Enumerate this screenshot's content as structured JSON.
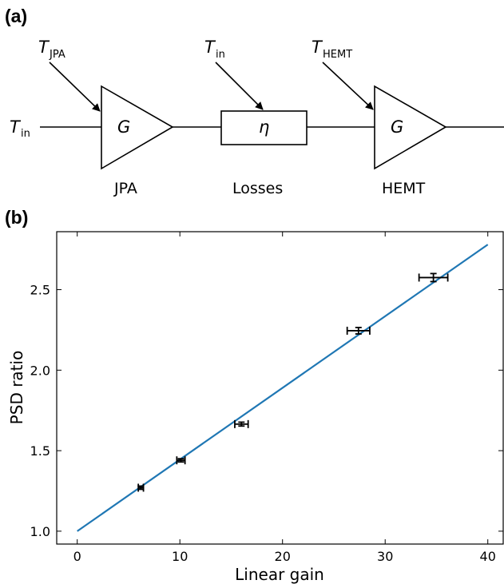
{
  "diagram": {
    "panel_label": "(a)",
    "input": {
      "symbol": "T",
      "subscript": "in"
    },
    "jpa": {
      "temp_symbol": "T",
      "temp_subscript": "JPA",
      "gain_symbol": "G",
      "caption": "JPA"
    },
    "losses": {
      "temp_symbol": "T",
      "temp_subscript": "in",
      "eta_symbol": "η",
      "caption": "Losses"
    },
    "hemt": {
      "temp_symbol": "T",
      "temp_subscript": "HEMT",
      "gain_symbol": "G",
      "caption": "HEMT"
    }
  },
  "chart_data": {
    "panel_label": "(b)",
    "type": "scatter",
    "xlabel": "Linear gain",
    "ylabel": "PSD ratio",
    "xlim": [
      -2,
      41.5
    ],
    "ylim": [
      0.92,
      2.86
    ],
    "xticks": [
      0,
      10,
      20,
      30,
      40
    ],
    "yticks": [
      1.0,
      1.5,
      2.0,
      2.5
    ],
    "ytick_labels": [
      "1.0",
      "1.5",
      "2.0",
      "2.5"
    ],
    "points": [
      {
        "x": 6.2,
        "y": 1.27,
        "xerr": 0.25,
        "yerr": 0.01
      },
      {
        "x": 10.1,
        "y": 1.44,
        "xerr": 0.4,
        "yerr": 0.01
      },
      {
        "x": 16.0,
        "y": 1.665,
        "xerr": 0.65,
        "yerr": 0.012
      },
      {
        "x": 27.4,
        "y": 2.245,
        "xerr": 1.1,
        "yerr": 0.02
      },
      {
        "x": 34.7,
        "y": 2.575,
        "xerr": 1.4,
        "yerr": 0.025
      }
    ],
    "fit_line": {
      "x": [
        0,
        40
      ],
      "y": [
        1.0,
        2.78
      ],
      "color": "#1f77b4"
    },
    "point_color": "#000000"
  }
}
